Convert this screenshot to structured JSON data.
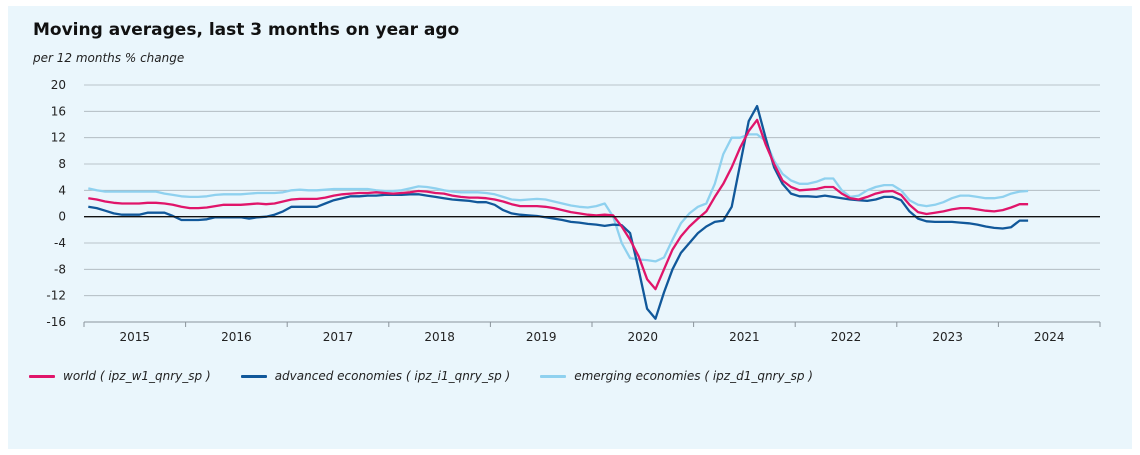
{
  "chart_data": {
    "type": "line",
    "title": "Moving averages, last 3 months on year ago",
    "ylabel": "per 12 months % change",
    "ylim": [
      -16,
      20
    ],
    "yticks": [
      "20",
      "16",
      "12",
      "8",
      "4",
      "0",
      "-4",
      "-8",
      "-12",
      "-16"
    ],
    "ytick_values": [
      20,
      16,
      12,
      8,
      4,
      0,
      -4,
      -8,
      -12,
      -16
    ],
    "xlim": [
      2014.5,
      2024.5
    ],
    "xtick_labels": [
      "2015",
      "2016",
      "2017",
      "2018",
      "2019",
      "2020",
      "2021",
      "2022",
      "2023",
      "2024"
    ],
    "x_start": 2014.542,
    "x_step": 0.0833333,
    "grid": true,
    "legend_position": "bottom-left",
    "series": [
      {
        "name": "world ( ipz_w1_qnry_sp )",
        "color": "#e0156a",
        "values": [
          2.8,
          2.6,
          2.3,
          2.1,
          2.0,
          2.0,
          2.0,
          2.1,
          2.1,
          2.0,
          1.8,
          1.5,
          1.3,
          1.3,
          1.4,
          1.6,
          1.8,
          1.8,
          1.8,
          1.9,
          2.0,
          1.9,
          2.0,
          2.3,
          2.6,
          2.7,
          2.7,
          2.7,
          2.9,
          3.2,
          3.4,
          3.5,
          3.6,
          3.6,
          3.7,
          3.6,
          3.5,
          3.6,
          3.7,
          3.9,
          3.8,
          3.6,
          3.5,
          3.2,
          3.0,
          2.9,
          2.9,
          2.8,
          2.6,
          2.3,
          1.9,
          1.6,
          1.6,
          1.6,
          1.5,
          1.3,
          1.0,
          0.7,
          0.5,
          0.3,
          0.2,
          0.3,
          0.2,
          -1.5,
          -3.5,
          -6.0,
          -9.5,
          -11.0,
          -8.0,
          -5.0,
          -3.0,
          -1.5,
          -0.3,
          0.8,
          3.0,
          5.0,
          7.5,
          10.5,
          13.0,
          14.7,
          11.0,
          8.0,
          5.5,
          4.5,
          4.0,
          4.1,
          4.2,
          4.5,
          4.5,
          3.5,
          2.8,
          2.6,
          3.0,
          3.5,
          3.8,
          3.9,
          3.3,
          1.8,
          0.7,
          0.4,
          0.6,
          0.8,
          1.1,
          1.3,
          1.3,
          1.1,
          0.9,
          0.8,
          1.0,
          1.4,
          1.9,
          1.9
        ]
      },
      {
        "name": "advanced economies ( ipz_i1_qnry_sp )",
        "color": "#11589a",
        "values": [
          1.5,
          1.3,
          0.9,
          0.5,
          0.3,
          0.3,
          0.3,
          0.6,
          0.6,
          0.6,
          0.1,
          -0.5,
          -0.5,
          -0.5,
          -0.4,
          -0.1,
          -0.1,
          -0.1,
          -0.1,
          -0.3,
          -0.1,
          0.0,
          0.3,
          0.8,
          1.5,
          1.5,
          1.5,
          1.5,
          2.0,
          2.5,
          2.8,
          3.1,
          3.1,
          3.2,
          3.2,
          3.3,
          3.3,
          3.3,
          3.4,
          3.4,
          3.2,
          3.0,
          2.8,
          2.6,
          2.5,
          2.4,
          2.2,
          2.2,
          1.8,
          1.0,
          0.5,
          0.3,
          0.2,
          0.1,
          -0.1,
          -0.3,
          -0.5,
          -0.8,
          -0.9,
          -1.1,
          -1.2,
          -1.4,
          -1.2,
          -1.3,
          -2.5,
          -8.0,
          -14.0,
          -15.5,
          -11.5,
          -8.0,
          -5.5,
          -4.0,
          -2.5,
          -1.5,
          -0.8,
          -0.6,
          1.5,
          8.0,
          14.5,
          16.8,
          12.0,
          7.5,
          5.0,
          3.5,
          3.1,
          3.1,
          3.0,
          3.2,
          3.0,
          2.8,
          2.6,
          2.5,
          2.4,
          2.6,
          3.0,
          3.0,
          2.5,
          0.8,
          -0.3,
          -0.7,
          -0.8,
          -0.8,
          -0.8,
          -0.9,
          -1.0,
          -1.2,
          -1.5,
          -1.7,
          -1.8,
          -1.6,
          -0.6,
          -0.6
        ]
      },
      {
        "name": "emerging economies ( ipz_d1_qnry_sp )",
        "color": "#8fd1ef",
        "values": [
          4.3,
          4.0,
          3.8,
          3.8,
          3.8,
          3.8,
          3.8,
          3.8,
          3.8,
          3.5,
          3.3,
          3.1,
          3.0,
          3.0,
          3.1,
          3.3,
          3.4,
          3.4,
          3.4,
          3.5,
          3.6,
          3.6,
          3.6,
          3.7,
          4.0,
          4.1,
          4.0,
          4.0,
          4.1,
          4.2,
          4.2,
          4.2,
          4.2,
          4.2,
          4.0,
          3.9,
          3.9,
          4.0,
          4.3,
          4.6,
          4.5,
          4.3,
          4.0,
          3.8,
          3.7,
          3.7,
          3.7,
          3.6,
          3.4,
          3.0,
          2.6,
          2.5,
          2.6,
          2.7,
          2.6,
          2.3,
          2.0,
          1.7,
          1.5,
          1.4,
          1.6,
          2.0,
          0.0,
          -4.0,
          -6.3,
          -6.5,
          -6.6,
          -6.8,
          -6.2,
          -3.5,
          -1.0,
          0.5,
          1.5,
          2.0,
          5.0,
          9.5,
          12.0,
          12.0,
          12.5,
          12.5,
          11.5,
          8.5,
          6.5,
          5.5,
          5.0,
          5.0,
          5.3,
          5.8,
          5.8,
          4.0,
          3.0,
          3.2,
          4.0,
          4.5,
          4.8,
          4.8,
          4.0,
          2.5,
          1.8,
          1.6,
          1.8,
          2.2,
          2.8,
          3.2,
          3.2,
          3.0,
          2.8,
          2.8,
          3.0,
          3.5,
          3.8,
          3.9
        ]
      }
    ]
  }
}
